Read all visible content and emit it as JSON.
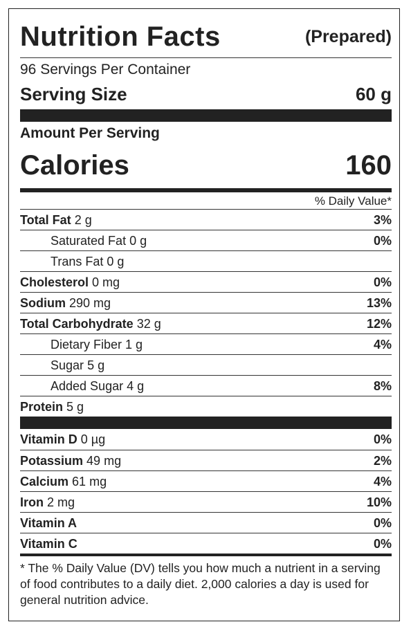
{
  "title": "Nutrition Facts",
  "subtitle": "(Prepared)",
  "servings": "96 Servings Per Container",
  "serving_size": {
    "label": "Serving Size",
    "value": "60 g"
  },
  "amount_per_serving": "Amount Per Serving",
  "calories": {
    "label": "Calories",
    "value": "160"
  },
  "dv_header": "% Daily Value*",
  "nutrients": [
    {
      "name": "Total Fat",
      "amount": "2 g",
      "dv": "3%"
    },
    {
      "name": "Saturated Fat",
      "amount": "0 g",
      "dv": "0%"
    },
    {
      "name": "Trans Fat",
      "amount": "0 g"
    },
    {
      "name": "Cholesterol",
      "amount": "0 mg",
      "dv": "0%"
    },
    {
      "name": "Sodium",
      "amount": "290 mg",
      "dv": "13%"
    },
    {
      "name": "Total Carbohydrate",
      "amount": "32 g",
      "dv": "12%"
    },
    {
      "name": "Dietary Fiber",
      "amount": "1 g",
      "dv": "4%"
    },
    {
      "name": "Sugar",
      "amount": "5 g"
    },
    {
      "name": "Added Sugar",
      "amount": "4 g",
      "dv": "8%"
    },
    {
      "name": "Protein",
      "amount": "5 g"
    }
  ],
  "vitamins": [
    {
      "name": "Vitamin D",
      "amount": "0 µg",
      "dv": "0%"
    },
    {
      "name": "Potassium",
      "amount": "49 mg",
      "dv": "2%"
    },
    {
      "name": "Calcium",
      "amount": "61 mg",
      "dv": "4%"
    },
    {
      "name": "Iron",
      "amount": "2 mg",
      "dv": "10%"
    },
    {
      "name": "Vitamin A",
      "dv": "0%"
    },
    {
      "name": "Vitamin C",
      "dv": "0%"
    }
  ],
  "footnote": "* The % Daily Value (DV) tells you how much a nutrient in a serving of food contributes to a daily diet. 2,000 calories a day is used for general nutrition advice."
}
